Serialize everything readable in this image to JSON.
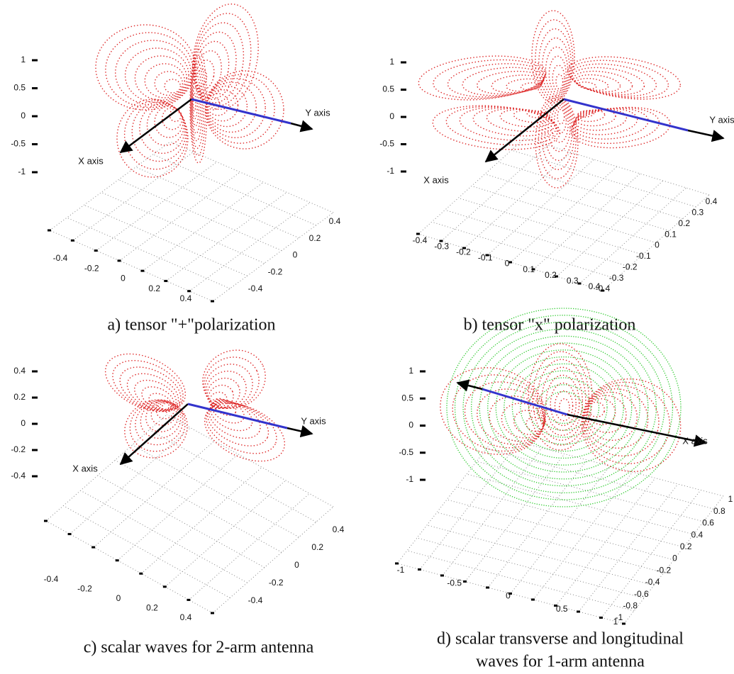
{
  "panels": [
    {
      "caption": [
        "a) tensor \"+\"polarization"
      ],
      "z_ticks": [
        "1",
        "0.5",
        "0",
        "-0.5",
        "-1"
      ],
      "x_label": "X axis",
      "y_label": "Y axis",
      "floor_left": [
        "-0.4",
        "-0.2",
        "0",
        "0.2",
        "0.4"
      ],
      "floor_right": [
        "0.4",
        "0.2",
        "0",
        "-0.2",
        "-0.4"
      ]
    },
    {
      "caption": [
        "b) tensor \"x\" polarization"
      ],
      "z_ticks": [
        "1",
        "0.5",
        "0",
        "-0.5",
        "-1"
      ],
      "x_label": "X axis",
      "y_label": "Y axis",
      "floor_left": [
        "-0.4",
        "-0.3",
        "-0.2",
        "-0.1",
        "0",
        "0.1",
        "0.2",
        "0.3",
        "0.4"
      ],
      "floor_right": [
        "0.4",
        "0.3",
        "0.2",
        "0.1",
        "0",
        "-0.1",
        "-0.2",
        "-0.3",
        "-0.4"
      ]
    },
    {
      "caption": [
        "c) scalar waves for 2-arm antenna"
      ],
      "z_ticks": [
        "0.4",
        "0.2",
        "0",
        "-0.2",
        "-0.4"
      ],
      "x_label": "X axis",
      "y_label": "Y axis",
      "floor_left": [
        "-0.4",
        "-0.2",
        "0",
        "0.2",
        "0.4"
      ],
      "floor_right": [
        "0.4",
        "0.2",
        "0",
        "-0.2",
        "-0.4"
      ]
    },
    {
      "caption": [
        "d) scalar transverse and longitudinal",
        "waves for 1-arm antenna"
      ],
      "z_ticks": [
        "1",
        "0.5",
        "0",
        "-0.5",
        "-1"
      ],
      "x_label": "X axis",
      "floor_left": [
        "-1",
        "-0.5",
        "0",
        "0.5",
        "1"
      ],
      "floor_right": [
        "1",
        "0.8",
        "0.6",
        "0.4",
        "0.2",
        "0",
        "-0.2",
        "-0.4",
        "-0.6",
        "-0.8",
        "-1"
      ]
    }
  ]
}
